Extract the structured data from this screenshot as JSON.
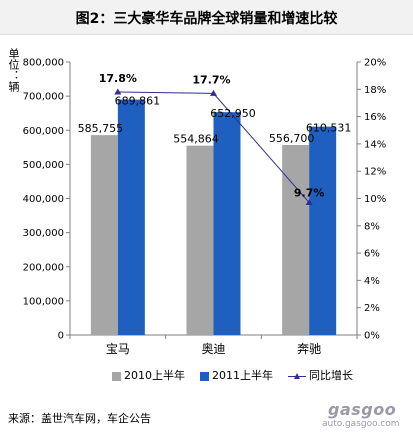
{
  "header": {
    "title": "图2：三大豪华车品牌全球销量和增速比较"
  },
  "axis_left_unit": "单位：辆",
  "chart_data": {
    "type": "bar",
    "categories": [
      "宝马",
      "奥迪",
      "奔驰"
    ],
    "series": [
      {
        "name": "2010上半年",
        "values": [
          585755,
          554864,
          556700
        ],
        "color": "#a6a6a6"
      },
      {
        "name": "2011上半年",
        "values": [
          689861,
          652950,
          610531
        ],
        "color": "#1f5fbf"
      }
    ],
    "line_series": {
      "name": "同比增长",
      "values": [
        17.8,
        17.7,
        9.7
      ],
      "unit": "%",
      "color": "#2f2f8f"
    },
    "bar_labels": [
      [
        "585,755",
        "689,861"
      ],
      [
        "554,864",
        "652,950"
      ],
      [
        "556,700",
        "610,531"
      ]
    ],
    "line_labels": [
      "17.8%",
      "17.7%",
      "9.7%"
    ],
    "y_left": {
      "min": 0,
      "max": 800000,
      "step": 100000,
      "ticks": [
        "0",
        "100,000",
        "200,000",
        "300,000",
        "400,000",
        "500,000",
        "600,000",
        "700,000",
        "800,000"
      ]
    },
    "y_right": {
      "min": 0,
      "max": 20,
      "step": 2,
      "ticks": [
        "0%",
        "2%",
        "4%",
        "6%",
        "8%",
        "10%",
        "12%",
        "14%",
        "16%",
        "18%",
        "20%"
      ]
    },
    "grid": false,
    "legend_position": "bottom"
  },
  "legend": {
    "items": [
      "2010上半年",
      "2011上半年",
      "同比增长"
    ]
  },
  "footer": {
    "source": "来源：盖世汽车网，车企公告"
  },
  "watermark": {
    "logo": "gasgoo",
    "url": "auto.gasgoo.com"
  }
}
